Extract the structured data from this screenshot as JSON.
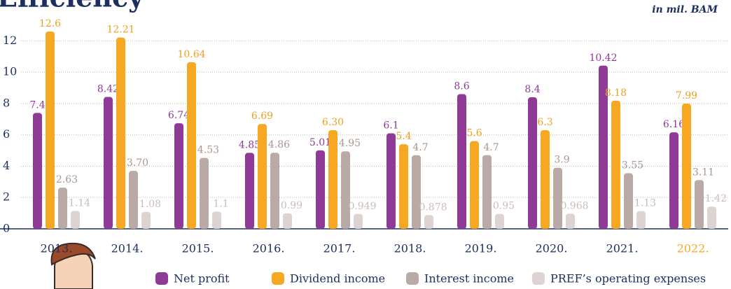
{
  "chart_data": {
    "type": "bar",
    "title": "Efficiency",
    "subtitle": "in mil. BAM",
    "categories": [
      "2013.",
      "2014.",
      "2015.",
      "2016.",
      "2017.",
      "2018.",
      "2019.",
      "2020.",
      "2021.",
      "2022."
    ],
    "series": [
      {
        "name": "Net profit",
        "color": "#8e3a96",
        "label_color": "#8e3a96",
        "values": [
          7.4,
          8.42,
          6.74,
          4.85,
          5.01,
          6.1,
          8.6,
          8.4,
          10.42,
          6.16
        ],
        "value_labels": [
          "7.4",
          "8.42",
          "6.74",
          "4.85",
          "5.01",
          "6.1",
          "8.6",
          "8.4",
          "10.42",
          "6.16"
        ]
      },
      {
        "name": "Dividend income",
        "color": "#f7a823",
        "label_color": "#f0a01e",
        "values": [
          12.6,
          12.21,
          10.64,
          6.69,
          6.3,
          5.4,
          5.6,
          6.3,
          8.18,
          7.99
        ],
        "value_labels": [
          "12.6",
          "12.21",
          "10.64",
          "6.69",
          "6.30",
          "5.4",
          "5.6",
          "6.3",
          "8.18",
          "7.99"
        ]
      },
      {
        "name": "Interest income",
        "color": "#b9aaa5",
        "label_color": "#a8968f",
        "values": [
          2.63,
          3.7,
          4.53,
          4.86,
          4.95,
          4.7,
          4.7,
          3.9,
          3.55,
          3.11
        ],
        "value_labels": [
          "2.63",
          "3.70",
          "4.53",
          "4.86",
          "4.95",
          "4.7",
          "4.7",
          "3.9",
          "3.55",
          "3.11"
        ]
      },
      {
        "name": "PREF’s operating expenses",
        "color": "#ddd3d0",
        "label_color": "#c9bdb9",
        "values": [
          1.14,
          1.08,
          1.1,
          0.99,
          0.949,
          0.878,
          0.95,
          0.968,
          1.13,
          1.42
        ],
        "value_labels": [
          "1.14",
          "1.08",
          "1.1",
          "0.99",
          "0.949",
          "0.878",
          "0.95",
          "0.968",
          "1.13",
          "1.42"
        ]
      }
    ],
    "ylim": [
      0,
      13
    ],
    "yticks": [
      0,
      2,
      4,
      6,
      8,
      10,
      12
    ],
    "grid": true,
    "highlight_index": 9,
    "highlight_color": "#f7a823"
  }
}
